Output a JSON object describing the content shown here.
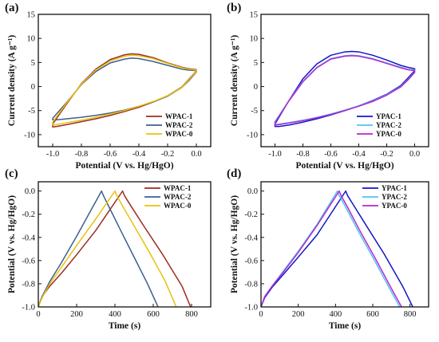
{
  "chart_data": [
    {
      "panel_label": "(a)",
      "type": "line",
      "xlabel": "Potential (V vs. Hg/HgO)",
      "ylabel": "Current density (A g⁻¹)",
      "xlim": [
        -1.1,
        0.1
      ],
      "ylim": [
        -12.5,
        15
      ],
      "xticks": [
        -1.0,
        -0.8,
        -0.6,
        -0.4,
        -0.2,
        0.0
      ],
      "yticks": [
        -10,
        -5,
        0,
        5,
        10,
        15
      ],
      "legend_position": "bottom-right",
      "series": [
        {
          "name": "WPAC-1",
          "color": "#9b2d22",
          "x": [
            -1.0,
            -0.9,
            -0.8,
            -0.7,
            -0.6,
            -0.5,
            -0.45,
            -0.4,
            -0.3,
            -0.2,
            -0.1,
            -0.05,
            0.0,
            0.0,
            -0.05,
            -0.1,
            -0.2,
            -0.3,
            -0.4,
            -0.5,
            -0.6,
            -0.7,
            -0.8,
            -0.9,
            -0.97,
            -1.0,
            -1.0
          ],
          "y": [
            -7.8,
            -3.5,
            0.6,
            3.6,
            5.6,
            6.6,
            6.8,
            6.7,
            6.0,
            4.9,
            4.0,
            3.7,
            3.5,
            3.2,
            1.6,
            -0.1,
            -1.9,
            -3.2,
            -4.3,
            -5.2,
            -6.0,
            -6.7,
            -7.3,
            -7.9,
            -8.3,
            -8.4,
            -7.8
          ]
        },
        {
          "name": "WPAC-2",
          "color": "#3f5e8e",
          "x": [
            -1.0,
            -0.9,
            -0.8,
            -0.7,
            -0.6,
            -0.5,
            -0.45,
            -0.4,
            -0.3,
            -0.2,
            -0.1,
            -0.05,
            0.0,
            0.0,
            -0.05,
            -0.1,
            -0.2,
            -0.3,
            -0.4,
            -0.5,
            -0.6,
            -0.7,
            -0.8,
            -0.9,
            -0.97,
            -1.0,
            -1.0
          ],
          "y": [
            -6.6,
            -3.2,
            0.4,
            3.1,
            4.9,
            5.7,
            5.9,
            5.8,
            5.2,
            4.4,
            3.6,
            3.4,
            3.3,
            3.0,
            1.3,
            -0.2,
            -2.0,
            -3.2,
            -4.1,
            -4.9,
            -5.5,
            -6.0,
            -6.4,
            -6.7,
            -6.9,
            -6.9,
            -6.6
          ]
        },
        {
          "name": "WPAC-0",
          "color": "#e8c20a",
          "x": [
            -1.0,
            -0.9,
            -0.8,
            -0.7,
            -0.6,
            -0.5,
            -0.45,
            -0.4,
            -0.3,
            -0.2,
            -0.1,
            -0.05,
            0.0,
            0.0,
            -0.05,
            -0.1,
            -0.2,
            -0.3,
            -0.4,
            -0.5,
            -0.6,
            -0.7,
            -0.8,
            -0.9,
            -0.97,
            -1.0,
            -1.0
          ],
          "y": [
            -7.4,
            -3.3,
            0.5,
            3.4,
            5.3,
            6.3,
            6.5,
            6.4,
            5.8,
            4.8,
            3.9,
            3.6,
            3.4,
            3.1,
            1.5,
            -0.2,
            -1.9,
            -3.1,
            -4.1,
            -5.0,
            -5.7,
            -6.4,
            -7.0,
            -7.5,
            -7.9,
            -8.0,
            -7.4
          ]
        }
      ]
    },
    {
      "panel_label": "(b)",
      "type": "line",
      "xlabel": "Potential (V vs. Hg/HgO)",
      "ylabel": "Current density (A g⁻¹)",
      "xlim": [
        -1.1,
        0.1
      ],
      "ylim": [
        -12.5,
        15
      ],
      "xticks": [
        -1.0,
        -0.8,
        -0.6,
        -0.4,
        -0.2,
        0.0
      ],
      "yticks": [
        -10,
        -5,
        0,
        5,
        10,
        15
      ],
      "legend_position": "bottom-right",
      "series": [
        {
          "name": "YPAC-1",
          "color": "#1515c8",
          "x": [
            -1.0,
            -0.9,
            -0.8,
            -0.7,
            -0.6,
            -0.5,
            -0.45,
            -0.4,
            -0.3,
            -0.2,
            -0.1,
            -0.05,
            0.0,
            0.0,
            -0.05,
            -0.1,
            -0.2,
            -0.3,
            -0.4,
            -0.5,
            -0.6,
            -0.7,
            -0.8,
            -0.9,
            -0.97,
            -1.0,
            -1.0
          ],
          "y": [
            -7.8,
            -2.9,
            1.6,
            4.7,
            6.5,
            7.2,
            7.3,
            7.2,
            6.5,
            5.5,
            4.4,
            4.0,
            3.7,
            3.3,
            1.7,
            0.2,
            -1.6,
            -2.9,
            -4.0,
            -5.0,
            -5.9,
            -6.7,
            -7.4,
            -8.0,
            -8.3,
            -8.3,
            -7.8
          ]
        },
        {
          "name": "YPAC-2",
          "color": "#4fc4f0",
          "x": [
            -1.0,
            -0.9,
            -0.8,
            -0.7,
            -0.6,
            -0.5,
            -0.45,
            -0.4,
            -0.3,
            -0.2,
            -0.1,
            -0.05,
            0.0,
            0.0,
            -0.05,
            -0.1,
            -0.2,
            -0.3,
            -0.4,
            -0.5,
            -0.6,
            -0.7,
            -0.8,
            -0.9,
            -0.97,
            -1.0,
            -1.0
          ],
          "y": [
            -7.3,
            -2.9,
            1.1,
            4.0,
            5.8,
            6.4,
            6.5,
            6.4,
            5.8,
            4.9,
            4.0,
            3.6,
            3.4,
            3.0,
            1.4,
            0.0,
            -1.7,
            -3.0,
            -4.0,
            -4.9,
            -5.7,
            -6.4,
            -7.0,
            -7.5,
            -7.8,
            -7.9,
            -7.3
          ]
        },
        {
          "name": "YPAC-0",
          "color": "#b826cf",
          "x": [
            -1.0,
            -0.9,
            -0.8,
            -0.7,
            -0.6,
            -0.5,
            -0.45,
            -0.4,
            -0.3,
            -0.2,
            -0.1,
            -0.05,
            0.0,
            0.0,
            -0.05,
            -0.1,
            -0.2,
            -0.3,
            -0.4,
            -0.5,
            -0.6,
            -0.7,
            -0.8,
            -0.9,
            -0.97,
            -1.0,
            -1.0
          ],
          "y": [
            -7.5,
            -3.0,
            1.0,
            3.9,
            5.7,
            6.3,
            6.4,
            6.3,
            5.7,
            4.8,
            3.9,
            3.5,
            3.3,
            2.9,
            1.3,
            -0.1,
            -1.8,
            -3.1,
            -4.1,
            -5.0,
            -5.8,
            -6.5,
            -7.1,
            -7.6,
            -7.9,
            -8.0,
            -7.5
          ]
        }
      ]
    },
    {
      "panel_label": "(c)",
      "type": "line",
      "xlabel": "Time (s)",
      "ylabel": "Potential (V vs. Hg/HgO)",
      "xlim": [
        0,
        900
      ],
      "ylim": [
        -1.0,
        0.08
      ],
      "xticks": [
        0,
        200,
        400,
        600,
        800
      ],
      "yticks": [
        -1.0,
        -0.8,
        -0.6,
        -0.4,
        -0.2,
        0.0
      ],
      "legend_position": "top-right",
      "series": [
        {
          "name": "WPAC-1",
          "color": "#9b2d22",
          "x": [
            0,
            20,
            60,
            120,
            200,
            300,
            440,
            450,
            480,
            550,
            650,
            750,
            795
          ],
          "y": [
            -1.0,
            -0.91,
            -0.82,
            -0.71,
            -0.55,
            -0.34,
            0.0,
            -0.04,
            -0.12,
            -0.3,
            -0.55,
            -0.82,
            -1.0
          ]
        },
        {
          "name": "WPAC-2",
          "color": "#3f5e8e",
          "x": [
            0,
            20,
            60,
            120,
            200,
            260,
            330,
            340,
            370,
            430,
            500,
            570,
            625
          ],
          "y": [
            -1.0,
            -0.91,
            -0.78,
            -0.62,
            -0.39,
            -0.21,
            0.0,
            -0.04,
            -0.14,
            -0.34,
            -0.57,
            -0.8,
            -1.0
          ]
        },
        {
          "name": "WPAC-0",
          "color": "#e8c20a",
          "x": [
            0,
            20,
            60,
            120,
            200,
            300,
            400,
            410,
            440,
            500,
            580,
            660,
            720
          ],
          "y": [
            -1.0,
            -0.92,
            -0.8,
            -0.66,
            -0.47,
            -0.24,
            0.0,
            -0.04,
            -0.13,
            -0.3,
            -0.53,
            -0.77,
            -1.0
          ]
        }
      ]
    },
    {
      "panel_label": "(d)",
      "type": "line",
      "xlabel": "Time (s)",
      "ylabel": "Potential (V vs. Hg/HgO)",
      "xlim": [
        0,
        900
      ],
      "ylim": [
        -1.0,
        0.08
      ],
      "xticks": [
        0,
        200,
        400,
        600,
        800
      ],
      "yticks": [
        -1.0,
        -0.8,
        -0.6,
        -0.4,
        -0.2,
        0.0
      ],
      "legend_position": "top-right",
      "series": [
        {
          "name": "YPAC-1",
          "color": "#1515c8",
          "x": [
            0,
            20,
            60,
            120,
            200,
            300,
            455,
            465,
            500,
            570,
            660,
            760,
            815
          ],
          "y": [
            -1.0,
            -0.92,
            -0.83,
            -0.72,
            -0.57,
            -0.38,
            0.0,
            -0.04,
            -0.13,
            -0.31,
            -0.54,
            -0.82,
            -1.0
          ]
        },
        {
          "name": "YPAC-2",
          "color": "#4fc4f0",
          "x": [
            0,
            20,
            60,
            120,
            200,
            300,
            410,
            420,
            455,
            520,
            610,
            700,
            745
          ],
          "y": [
            -1.0,
            -0.91,
            -0.82,
            -0.69,
            -0.52,
            -0.29,
            0.0,
            -0.04,
            -0.14,
            -0.34,
            -0.6,
            -0.87,
            -1.0
          ]
        },
        {
          "name": "YPAC-0",
          "color": "#b826cf",
          "x": [
            0,
            20,
            60,
            120,
            200,
            300,
            420,
            430,
            465,
            530,
            620,
            710,
            755
          ],
          "y": [
            -1.0,
            -0.91,
            -0.82,
            -0.7,
            -0.53,
            -0.3,
            0.0,
            -0.04,
            -0.14,
            -0.34,
            -0.6,
            -0.87,
            -1.0
          ]
        }
      ]
    }
  ]
}
